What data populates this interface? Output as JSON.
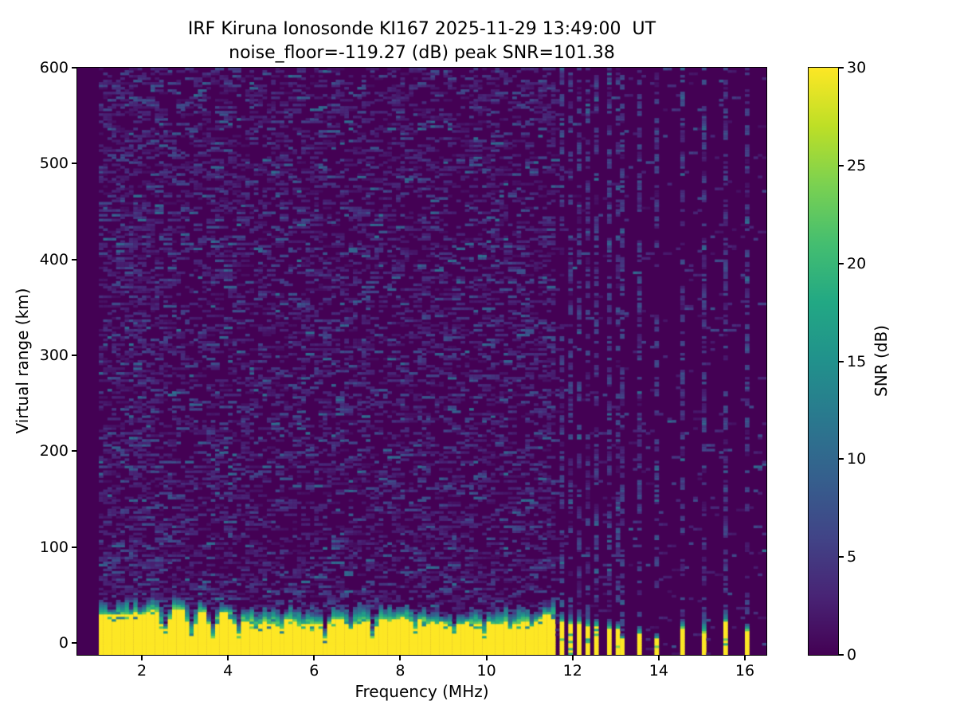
{
  "figure": {
    "title_line1": "IRF Kiruna Ionosonde KI167 2025-11-29 13:49:00  UT",
    "title_line2": "noise_floor=-119.27 (dB) peak SNR=101.38"
  },
  "chart_data": {
    "type": "heatmap",
    "title": "IRF Kiruna Ionosonde KI167 2025-11-29 13:49:00  UT",
    "subtitle": "noise_floor=-119.27 (dB) peak SNR=101.38",
    "xlabel": "Frequency (MHz)",
    "ylabel": "Virtual range (km)",
    "xlim": [
      0.5,
      16.5
    ],
    "ylim": [
      -12.5,
      600
    ],
    "xticks": [
      2,
      4,
      6,
      8,
      10,
      12,
      14,
      16
    ],
    "yticks": [
      0,
      100,
      200,
      300,
      400,
      500,
      600
    ],
    "grid": false,
    "noise_floor_db": -119.27,
    "peak_snr_db": 101.38,
    "colorbar": {
      "label": "SNR (dB)",
      "vmin": 0,
      "vmax": 30,
      "ticks": [
        0,
        5,
        10,
        15,
        20,
        25,
        30
      ],
      "colormap": "viridis",
      "colormap_stops": [
        "#440154",
        "#482475",
        "#414487",
        "#355f8d",
        "#2a788e",
        "#21918c",
        "#22a884",
        "#44be70",
        "#7ad151",
        "#bddf26",
        "#fde725"
      ]
    },
    "data_start_freq_mhz": 1.0,
    "freq_bin_mhz": 0.1,
    "range_bin_km": 2.5,
    "ground_clutter_band": {
      "freq_range_mhz": [
        1.0,
        11.62
      ],
      "base_km": -12.5,
      "yellow_top_km_range": [
        20,
        36
      ],
      "green_top_extra_km": [
        6,
        16
      ],
      "snr_db": 30,
      "notches": [
        {
          "freq_mhz": 2.55,
          "top_km": 14
        },
        {
          "freq_mhz": 3.12,
          "top_km": 10
        },
        {
          "freq_mhz": 3.68,
          "top_km": 6
        },
        {
          "freq_mhz": 4.3,
          "top_km": 9
        },
        {
          "freq_mhz": 5.2,
          "top_km": 16
        },
        {
          "freq_mhz": 6.3,
          "top_km": 5
        },
        {
          "freq_mhz": 6.85,
          "top_km": 15
        },
        {
          "freq_mhz": 7.3,
          "top_km": 9
        },
        {
          "freq_mhz": 8.35,
          "top_km": 16
        },
        {
          "freq_mhz": 9.25,
          "top_km": 13
        },
        {
          "freq_mhz": 9.97,
          "top_km": 11
        },
        {
          "freq_mhz": 10.6,
          "top_km": 15
        },
        {
          "freq_mhz": 11.1,
          "top_km": 17
        }
      ]
    },
    "interference_stripes": [
      {
        "freq_mhz": 11.72,
        "yellow_top_km": 22,
        "green_top_km": 32
      },
      {
        "freq_mhz": 11.94,
        "yellow_top_km": 20,
        "green_top_km": 30
      },
      {
        "freq_mhz": 12.16,
        "yellow_top_km": 21,
        "green_top_km": 30
      },
      {
        "freq_mhz": 12.38,
        "yellow_top_km": 18,
        "green_top_km": 28
      },
      {
        "freq_mhz": 12.6,
        "yellow_top_km": 18,
        "green_top_km": 26
      },
      {
        "freq_mhz": 12.82,
        "yellow_top_km": 16,
        "green_top_km": 24
      },
      {
        "freq_mhz": 13.02,
        "yellow_top_km": 14,
        "green_top_km": 22
      },
      {
        "freq_mhz": 13.18,
        "yellow_top_km": 5,
        "green_top_km": 9
      },
      {
        "freq_mhz": 13.5,
        "yellow_top_km": 9,
        "green_top_km": 18
      },
      {
        "freq_mhz": 13.93,
        "yellow_top_km": 4,
        "green_top_km": 10
      },
      {
        "freq_mhz": 14.5,
        "yellow_top_km": 16,
        "green_top_km": 25
      },
      {
        "freq_mhz": 15.0,
        "yellow_top_km": 13,
        "green_top_km": 24
      },
      {
        "freq_mhz": 15.52,
        "yellow_top_km": 22,
        "green_top_km": 32
      },
      {
        "freq_mhz": 16.0,
        "yellow_top_km": 13,
        "green_top_km": 21
      }
    ],
    "minor_streak_freqs_mhz": [
      3.5,
      6.3,
      8.05,
      10.15,
      11.25
    ],
    "background_noise": {
      "dense_region_max_freq_mhz": 11.63,
      "dense_dash_density": 0.26,
      "sparse_dash_density": 0.03,
      "streak_extra_density": 0.27,
      "dash_snr_range_db": [
        1,
        11
      ]
    }
  }
}
